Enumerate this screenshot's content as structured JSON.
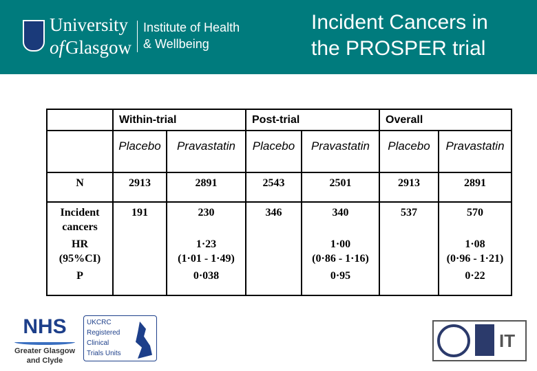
{
  "header": {
    "university_line1": "University",
    "university_line2_of": "of",
    "university_line2": "Glasgow",
    "institute_line1": "Institute of Health",
    "institute_line2": "& Wellbeing",
    "title_line1": "Incident Cancers in",
    "title_line2": "the PROSPER trial",
    "bg_color": "#007b7d"
  },
  "table": {
    "groups": [
      "Within-trial",
      "Post-trial",
      "Overall"
    ],
    "subheaders": [
      "Placebo",
      "Pravastatin",
      "Placebo",
      "Pravastatin",
      "Placebo",
      "Pravastatin"
    ],
    "rows": [
      {
        "label": "N",
        "values": [
          "2913",
          "2891",
          "2543",
          "2501",
          "2913",
          "2891"
        ]
      },
      {
        "label_line1": "Incident",
        "label_line2": "cancers",
        "values": [
          "191",
          "230",
          "346",
          "340",
          "537",
          "570"
        ]
      },
      {
        "label_line1": "HR",
        "label_line2": "(95%CI)",
        "values": [
          "",
          "1·23",
          "",
          "1·00",
          "",
          "1·08"
        ],
        "ci": [
          "",
          "(1·01 - 1·49)",
          "",
          "(0·86 - 1·16)",
          "",
          "(0·96 - 1·21)"
        ]
      },
      {
        "label": "P",
        "values": [
          "",
          "0·038",
          "",
          "0·95",
          "",
          "0·22"
        ]
      }
    ]
  },
  "logos": {
    "nhs": "NHS",
    "nhs_sub1": "Greater Glasgow",
    "nhs_sub2": "and Clyde",
    "ukcrc": [
      "UKCRC",
      "Registered",
      "Clinical",
      "Trials Units"
    ],
    "cert_text": "IT"
  }
}
